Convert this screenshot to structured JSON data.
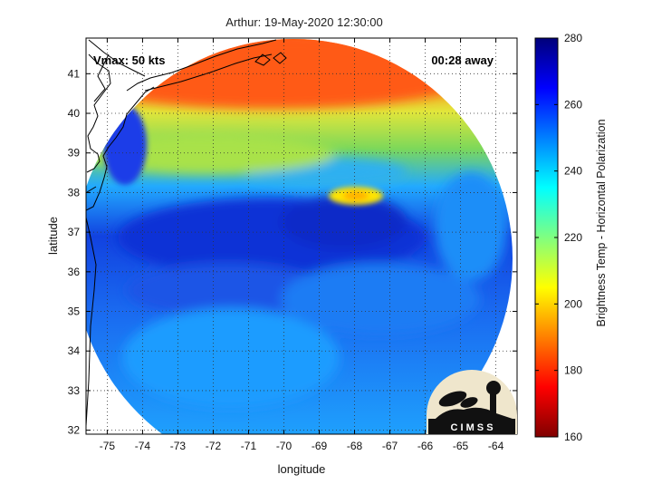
{
  "title": "Arthur: 19-May-2020 12:30:00",
  "annotations": {
    "vmax": "Vmax: 50 kts",
    "time_away": "00:28 away"
  },
  "axes": {
    "xlabel": "longitude",
    "ylabel": "latitude",
    "xlim": [
      -75.6,
      -63.4
    ],
    "ylim": [
      31.9,
      41.9
    ],
    "xticks": [
      "-75",
      "-74",
      "-73",
      "-72",
      "-71",
      "-70",
      "-69",
      "-68",
      "-67",
      "-66",
      "-65",
      "-64"
    ],
    "yticks": [
      "32",
      "33",
      "34",
      "35",
      "36",
      "37",
      "38",
      "39",
      "40",
      "41"
    ],
    "grid": "dotted"
  },
  "colorbar": {
    "label": "Brightness Temp - Horizontal Polarization",
    "ticks": [
      "280",
      "260",
      "240",
      "220",
      "200",
      "180",
      "160"
    ],
    "range": [
      160,
      280
    ],
    "colormap": "jet"
  },
  "logo": {
    "text": "C I M S S"
  },
  "colors": {
    "warm_north": "#ff6a14",
    "transition": "#b5e63e",
    "ocean_mid": "#1aa6ff",
    "storm_core": "#0f3fe0",
    "hotspot": "#ffe600"
  },
  "chart_data": {
    "type": "heatmap",
    "title": "Arthur: 19-May-2020 12:30:00",
    "xlabel": "longitude",
    "ylabel": "latitude",
    "xlim": [
      -75.6,
      -63.4
    ],
    "ylim": [
      31.9,
      41.9
    ],
    "value_range": [
      160,
      280
    ],
    "colorbar_label": "Brightness Temp - Horizontal Polarization"
  }
}
